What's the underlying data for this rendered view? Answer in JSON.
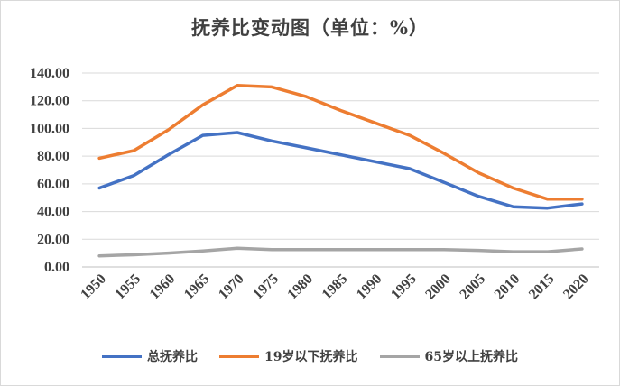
{
  "chart_data": {
    "type": "line",
    "title": "抚养比变动图（单位：%）",
    "xlabel": "",
    "ylabel": "",
    "categories": [
      "1950",
      "1955",
      "1960",
      "1965",
      "1970",
      "1975",
      "1980",
      "1985",
      "1990",
      "1995",
      "2000",
      "2005",
      "2010",
      "2015",
      "2020"
    ],
    "ylim": [
      0,
      140
    ],
    "yticks": [
      "0.00",
      "20.00",
      "40.00",
      "60.00",
      "80.00",
      "100.00",
      "120.00",
      "140.00"
    ],
    "grid": "horizontal",
    "legend_position": "bottom",
    "series": [
      {
        "name": "总抚养比",
        "color": "#4472C4",
        "values": [
          57,
          66,
          81,
          95,
          97,
          91,
          86,
          81,
          76,
          71,
          61,
          51,
          43.5,
          42.5,
          45.5
        ]
      },
      {
        "name": "19岁以下抚养比",
        "color": "#ED7D31",
        "values": [
          78.5,
          84,
          99,
          117,
          131,
          130,
          123,
          113,
          104,
          95,
          82,
          68,
          57,
          49,
          49
        ]
      },
      {
        "name": "65岁以上抚养比",
        "color": "#A5A5A5",
        "values": [
          8,
          8.8,
          10,
          11.5,
          13.5,
          12.5,
          12.5,
          12.5,
          12.5,
          12.5,
          12.5,
          12,
          11,
          11,
          13
        ]
      }
    ]
  }
}
